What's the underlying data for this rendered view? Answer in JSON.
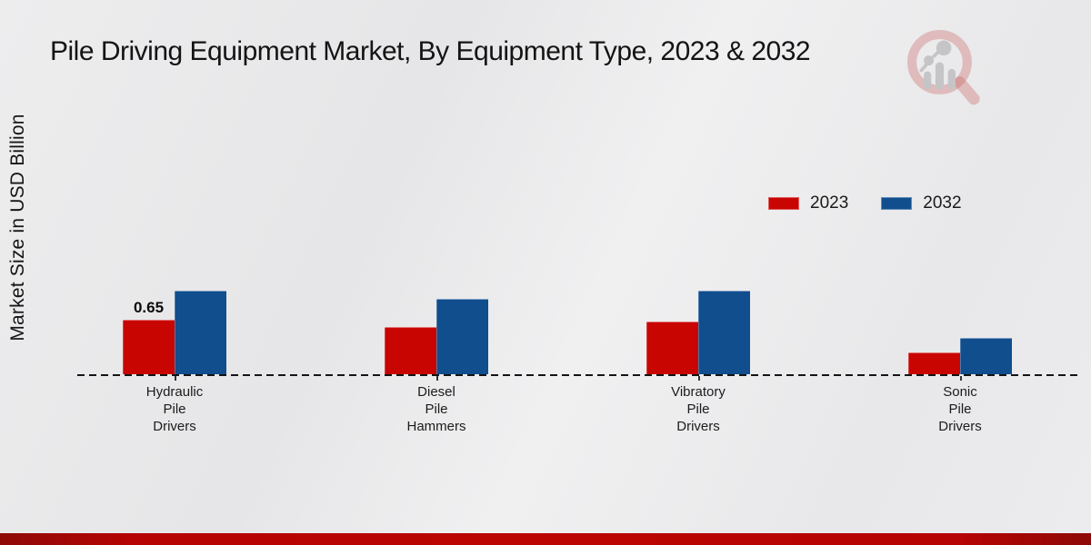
{
  "title": "Pile Driving Equipment Market, By Equipment Type, 2023 & 2032",
  "ylabel": "Market Size in USD Billion",
  "legend": {
    "items": [
      {
        "label": "2023"
      },
      {
        "label": "2032"
      }
    ]
  },
  "colors": {
    "series_2023": "#c90502",
    "series_2032": "#104e8e",
    "footer_strip": "#b50403",
    "background": "#ebebec",
    "logo_ring": "#d5a3a3",
    "logo_glyphs": "#c5c5c8"
  },
  "chart_data": {
    "type": "bar",
    "title": "Pile Driving Equipment Market, By Equipment Type, 2023 & 2032",
    "ylabel": "Market Size in USD Billion",
    "xlabel": "",
    "categories": [
      "Hydraulic\nPile\nDrivers",
      "Diesel\nPile\nHammers",
      "Vibratory\nPile\nDrivers",
      "Sonic\nPile\nDrivers"
    ],
    "series": [
      {
        "name": "2023",
        "color": "#c90502",
        "values": [
          0.65,
          0.57,
          0.63,
          0.26
        ],
        "value_labels": [
          "0.65",
          "",
          "",
          ""
        ]
      },
      {
        "name": "2032",
        "color": "#104e8e",
        "values": [
          1.0,
          0.9,
          1.0,
          0.44
        ],
        "value_labels": [
          "",
          "",
          "",
          ""
        ]
      }
    ],
    "ylim": [
      0,
      1.25
    ],
    "grid": false,
    "axis_style": "dashed-baseline-only",
    "legend_position": "upper-right"
  }
}
